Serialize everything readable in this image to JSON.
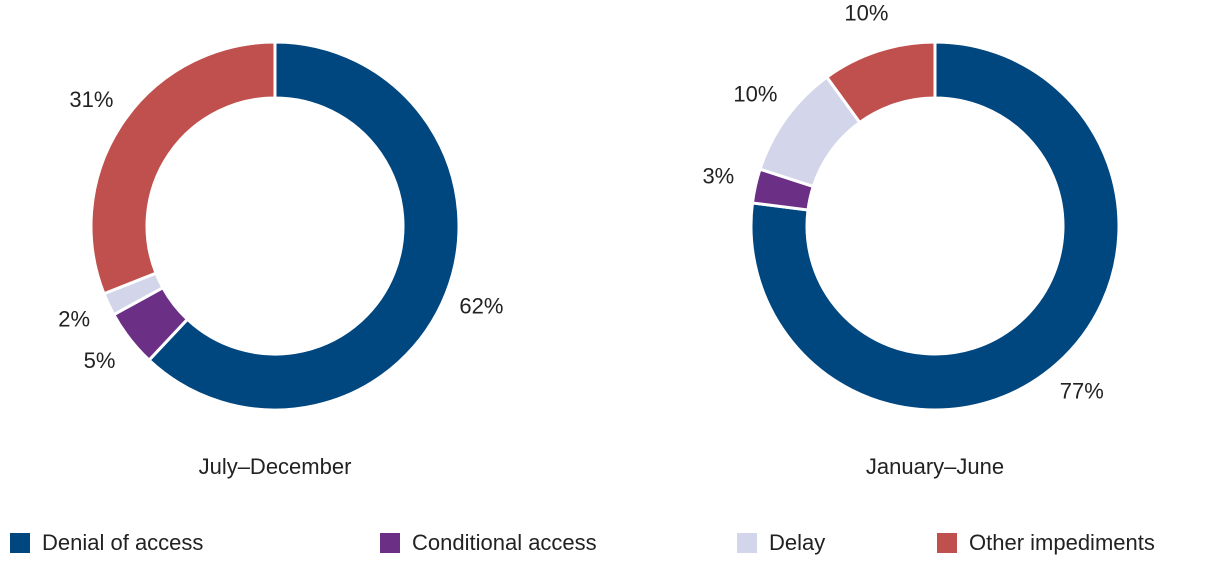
{
  "chart_data": [
    {
      "type": "pie",
      "title": "July–December",
      "values": [
        62,
        5,
        2,
        31
      ],
      "value_labels": [
        "62%",
        "5%",
        "2%",
        "31%"
      ]
    },
    {
      "type": "pie",
      "title": "January–June",
      "values": [
        77,
        3,
        10,
        10
      ],
      "value_labels": [
        "77%",
        "3%",
        "10%",
        "10%"
      ]
    }
  ],
  "legend": {
    "labels": [
      "Denial of access",
      "Conditional access",
      "Delay",
      "Other impediments"
    ],
    "colors": [
      "#00467f",
      "#6b2f86",
      "#d3d6ea",
      "#c0504d"
    ]
  }
}
